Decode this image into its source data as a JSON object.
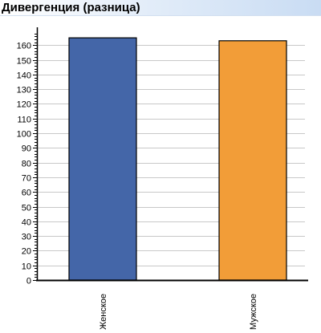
{
  "title": "Дивергенция (разница)",
  "chart_data": {
    "type": "bar",
    "title": "Дивергенция (разница)",
    "categories": [
      "Женское",
      "Мужское"
    ],
    "values": [
      165,
      163
    ],
    "ylim": [
      0,
      170
    ],
    "ytick_step": 10,
    "yticks": [
      0,
      10,
      20,
      30,
      40,
      50,
      60,
      70,
      80,
      90,
      100,
      110,
      120,
      130,
      140,
      150,
      160
    ],
    "ytick_labels": [
      "0",
      "10",
      "20",
      "30",
      "40",
      "50",
      "60",
      "70",
      "80",
      "90",
      "100",
      "110",
      "120",
      "130",
      "140",
      "150",
      "160"
    ],
    "grid": true,
    "legend": "none",
    "colors": [
      "#4466a8",
      "#f29d38"
    ]
  }
}
